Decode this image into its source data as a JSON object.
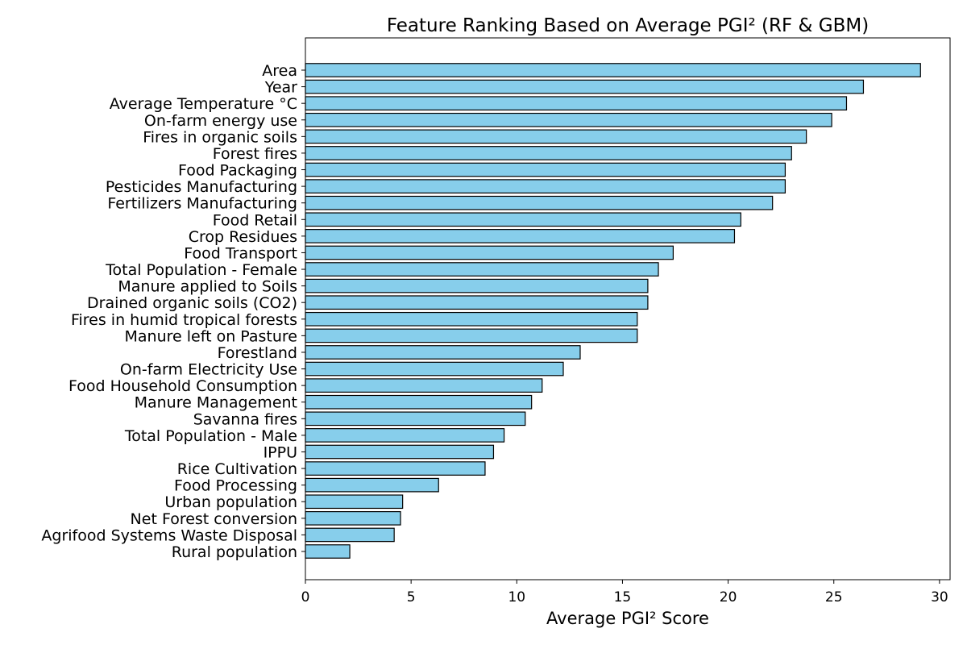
{
  "chart_data": {
    "type": "bar",
    "orientation": "horizontal",
    "title": "Feature Ranking Based on Average PGI² (RF & GBM)",
    "xlabel": "Average PGI² Score",
    "ylabel": "",
    "xlim": [
      0,
      30.5
    ],
    "xticks": [
      0,
      5,
      10,
      15,
      20,
      25,
      30
    ],
    "xtick_labels": [
      "0",
      "5",
      "10",
      "15",
      "20",
      "25",
      "30"
    ],
    "grid": false,
    "bar_color": "#87CEEB",
    "edge_color": "#000000",
    "categories": [
      "Area",
      "Year",
      "Average Temperature °C",
      "On-farm energy use",
      "Fires in organic soils",
      "Forest fires",
      "Food Packaging",
      "Pesticides Manufacturing",
      "Fertilizers Manufacturing",
      "Food Retail",
      "Crop Residues",
      "Food Transport",
      "Total Population - Female",
      "Manure applied to Soils",
      "Drained organic soils (CO2)",
      "Fires in humid tropical forests",
      "Manure left on Pasture",
      "Forestland",
      "On-farm Electricity Use",
      "Food Household Consumption",
      "Manure Management",
      "Savanna fires",
      "Total Population - Male",
      "IPPU",
      "Rice Cultivation",
      "Food Processing",
      "Urban population",
      "Net Forest conversion",
      "Agrifood Systems Waste Disposal",
      "Rural population"
    ],
    "values": [
      29.1,
      26.4,
      25.6,
      24.9,
      23.7,
      23.0,
      22.7,
      22.7,
      22.1,
      20.6,
      20.3,
      17.4,
      16.7,
      16.2,
      16.2,
      15.7,
      15.7,
      13.0,
      12.2,
      11.2,
      10.7,
      10.4,
      9.4,
      8.9,
      8.5,
      6.3,
      4.6,
      4.5,
      4.2,
      2.1
    ]
  }
}
